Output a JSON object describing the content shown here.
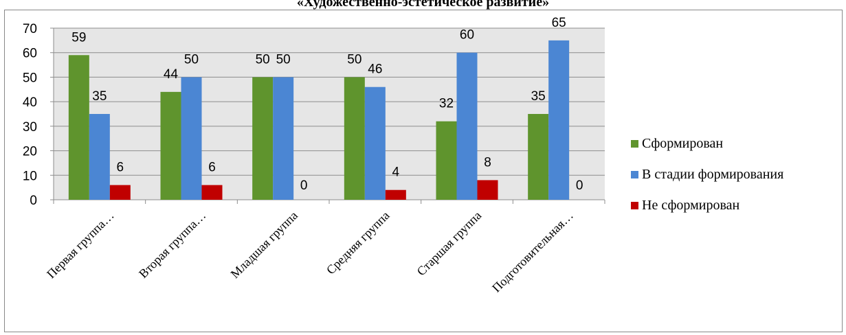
{
  "chart_data": {
    "type": "bar",
    "title": "«Художественно-эстетическое развитие»",
    "categories": [
      "Первая группа…",
      "Вторая группа…",
      "Младшая группа",
      "Средняя группа",
      "Старшая группа",
      "Подготовительная…"
    ],
    "series": [
      {
        "name": "Сформирован",
        "color": "#5f942d",
        "values": [
          59,
          44,
          50,
          50,
          32,
          35
        ]
      },
      {
        "name": "В стадии формирования",
        "color": "#4b86d3",
        "values": [
          35,
          50,
          50,
          46,
          60,
          65
        ]
      },
      {
        "name": "Не сформирован",
        "color": "#c00000",
        "values": [
          6,
          6,
          0,
          4,
          8,
          0
        ]
      }
    ],
    "ylim": [
      0,
      70
    ],
    "yticks": [
      0,
      10,
      20,
      30,
      40,
      50,
      60,
      70
    ],
    "grid": true,
    "legend_position": "right"
  }
}
